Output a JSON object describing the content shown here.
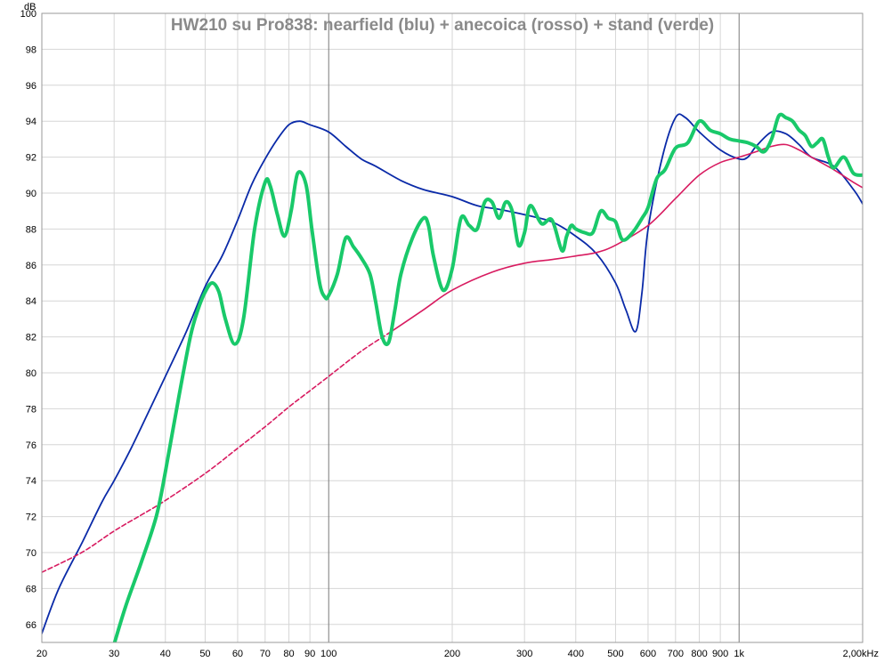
{
  "chart_data": {
    "type": "line",
    "title": "HW210 su Pro838: nearfield (blu) + anecoica (rosso) + stand (verde)",
    "ylabel": "dB",
    "xscale": "log",
    "xlim": [
      20,
      2000
    ],
    "ylim": [
      65,
      100
    ],
    "x_ticks": [
      {
        "v": 20,
        "label": "20"
      },
      {
        "v": 30,
        "label": "30"
      },
      {
        "v": 40,
        "label": "40"
      },
      {
        "v": 50,
        "label": "50"
      },
      {
        "v": 60,
        "label": "60"
      },
      {
        "v": 70,
        "label": "70"
      },
      {
        "v": 80,
        "label": "80"
      },
      {
        "v": 90,
        "label": "90"
      },
      {
        "v": 100,
        "label": "100"
      },
      {
        "v": 200,
        "label": "200"
      },
      {
        "v": 300,
        "label": "300"
      },
      {
        "v": 400,
        "label": "400"
      },
      {
        "v": 500,
        "label": "500"
      },
      {
        "v": 600,
        "label": "600"
      },
      {
        "v": 700,
        "label": "700"
      },
      {
        "v": 800,
        "label": "800"
      },
      {
        "v": 900,
        "label": "900"
      },
      {
        "v": 1000,
        "label": "1k"
      },
      {
        "v": 2000,
        "label": "2,00kHz"
      }
    ],
    "y_ticks": [
      66,
      68,
      70,
      72,
      74,
      76,
      78,
      80,
      82,
      84,
      86,
      88,
      90,
      92,
      94,
      96,
      98,
      100
    ],
    "grid": true,
    "series": [
      {
        "color": "#0a2aa8",
        "width": 1.8,
        "dashed": false,
        "x": [
          20,
          22,
          25,
          28,
          30,
          33,
          36,
          40,
          45,
          50,
          55,
          60,
          65,
          70,
          75,
          80,
          85,
          90,
          100,
          110,
          120,
          130,
          150,
          170,
          200,
          230,
          260,
          300,
          350,
          400,
          450,
          500,
          530,
          560,
          580,
          600,
          650,
          700,
          740,
          800,
          900,
          1000,
          1050,
          1100,
          1200,
          1300,
          1400,
          1500,
          1700,
          1900,
          2000
        ],
        "values": [
          65.5,
          68.0,
          70.5,
          72.8,
          74.0,
          75.8,
          77.6,
          79.8,
          82.3,
          84.8,
          86.5,
          88.5,
          90.5,
          91.9,
          93.0,
          93.8,
          94.0,
          93.8,
          93.4,
          92.6,
          91.9,
          91.5,
          90.7,
          90.2,
          89.8,
          89.3,
          89.1,
          88.8,
          88.4,
          87.6,
          86.6,
          85.0,
          83.5,
          82.3,
          84.5,
          88.0,
          92.0,
          94.2,
          94.2,
          93.4,
          92.4,
          91.9,
          92.0,
          92.6,
          93.4,
          93.3,
          92.7,
          92.0,
          91.5,
          90.2,
          89.4
        ]
      },
      {
        "color": "#d81b60",
        "width": 1.6,
        "dashed": true,
        "x": [
          20,
          25,
          30,
          35,
          40,
          50,
          60,
          70,
          80,
          90,
          100,
          120,
          140
        ],
        "values": [
          68.9,
          70.0,
          71.2,
          72.1,
          72.9,
          74.4,
          75.8,
          77.0,
          78.1,
          79.0,
          79.8,
          81.2,
          82.2
        ]
      },
      {
        "color": "#d81b60",
        "width": 1.6,
        "dashed": false,
        "x": [
          140,
          170,
          200,
          250,
          300,
          350,
          400,
          450,
          500,
          600,
          700,
          800,
          900,
          1000,
          1100,
          1200,
          1300,
          1400,
          1500,
          1700,
          1900,
          2000
        ],
        "values": [
          82.2,
          83.5,
          84.6,
          85.6,
          86.1,
          86.3,
          86.5,
          86.7,
          87.1,
          88.2,
          89.7,
          91.0,
          91.7,
          92.0,
          92.3,
          92.6,
          92.7,
          92.4,
          92.0,
          91.3,
          90.6,
          90.3
        ]
      },
      {
        "color": "#19c96a",
        "width": 4,
        "dashed": false,
        "x": [
          30,
          32,
          35,
          38,
          40,
          43,
          46,
          48,
          50,
          52,
          54,
          56,
          59,
          62,
          66,
          70,
          72,
          75,
          78,
          81,
          84,
          88,
          91,
          95,
          98,
          100,
          105,
          110,
          115,
          120,
          126,
          130,
          135,
          140,
          145,
          150,
          160,
          170,
          175,
          180,
          190,
          200,
          210,
          220,
          230,
          240,
          250,
          260,
          270,
          280,
          290,
          300,
          310,
          330,
          350,
          370,
          380,
          390,
          400,
          420,
          440,
          460,
          480,
          500,
          520,
          550,
          580,
          600,
          630,
          660,
          700,
          750,
          800,
          850,
          900,
          950,
          1000,
          1050,
          1100,
          1150,
          1200,
          1250,
          1300,
          1350,
          1400,
          1450,
          1500,
          1550,
          1600,
          1650,
          1700,
          1800,
          1900,
          2000
        ],
        "values": [
          64.9,
          67.0,
          69.5,
          72.0,
          74.5,
          78.5,
          82.0,
          83.5,
          84.5,
          85.0,
          84.5,
          83.0,
          81.6,
          83.0,
          88.0,
          90.6,
          90.4,
          88.8,
          87.6,
          89.0,
          91.1,
          90.5,
          88.0,
          85.0,
          84.2,
          84.3,
          85.5,
          87.5,
          87.0,
          86.4,
          85.5,
          84.0,
          82.0,
          81.7,
          83.5,
          85.5,
          87.5,
          88.6,
          88.2,
          86.5,
          84.6,
          85.8,
          88.6,
          88.2,
          88.0,
          89.5,
          89.5,
          88.6,
          89.5,
          89.0,
          87.1,
          87.8,
          89.3,
          88.3,
          88.5,
          86.8,
          87.6,
          88.2,
          88.0,
          87.8,
          87.8,
          89.0,
          88.6,
          88.4,
          87.4,
          87.8,
          88.6,
          89.2,
          90.8,
          91.3,
          92.5,
          92.8,
          94.0,
          93.5,
          93.3,
          93.0,
          92.9,
          92.8,
          92.6,
          92.3,
          93.0,
          94.3,
          94.2,
          94.0,
          93.5,
          93.2,
          92.6,
          92.8,
          93.0,
          92.0,
          91.4,
          92.0,
          91.1,
          91.0
        ]
      }
    ]
  }
}
